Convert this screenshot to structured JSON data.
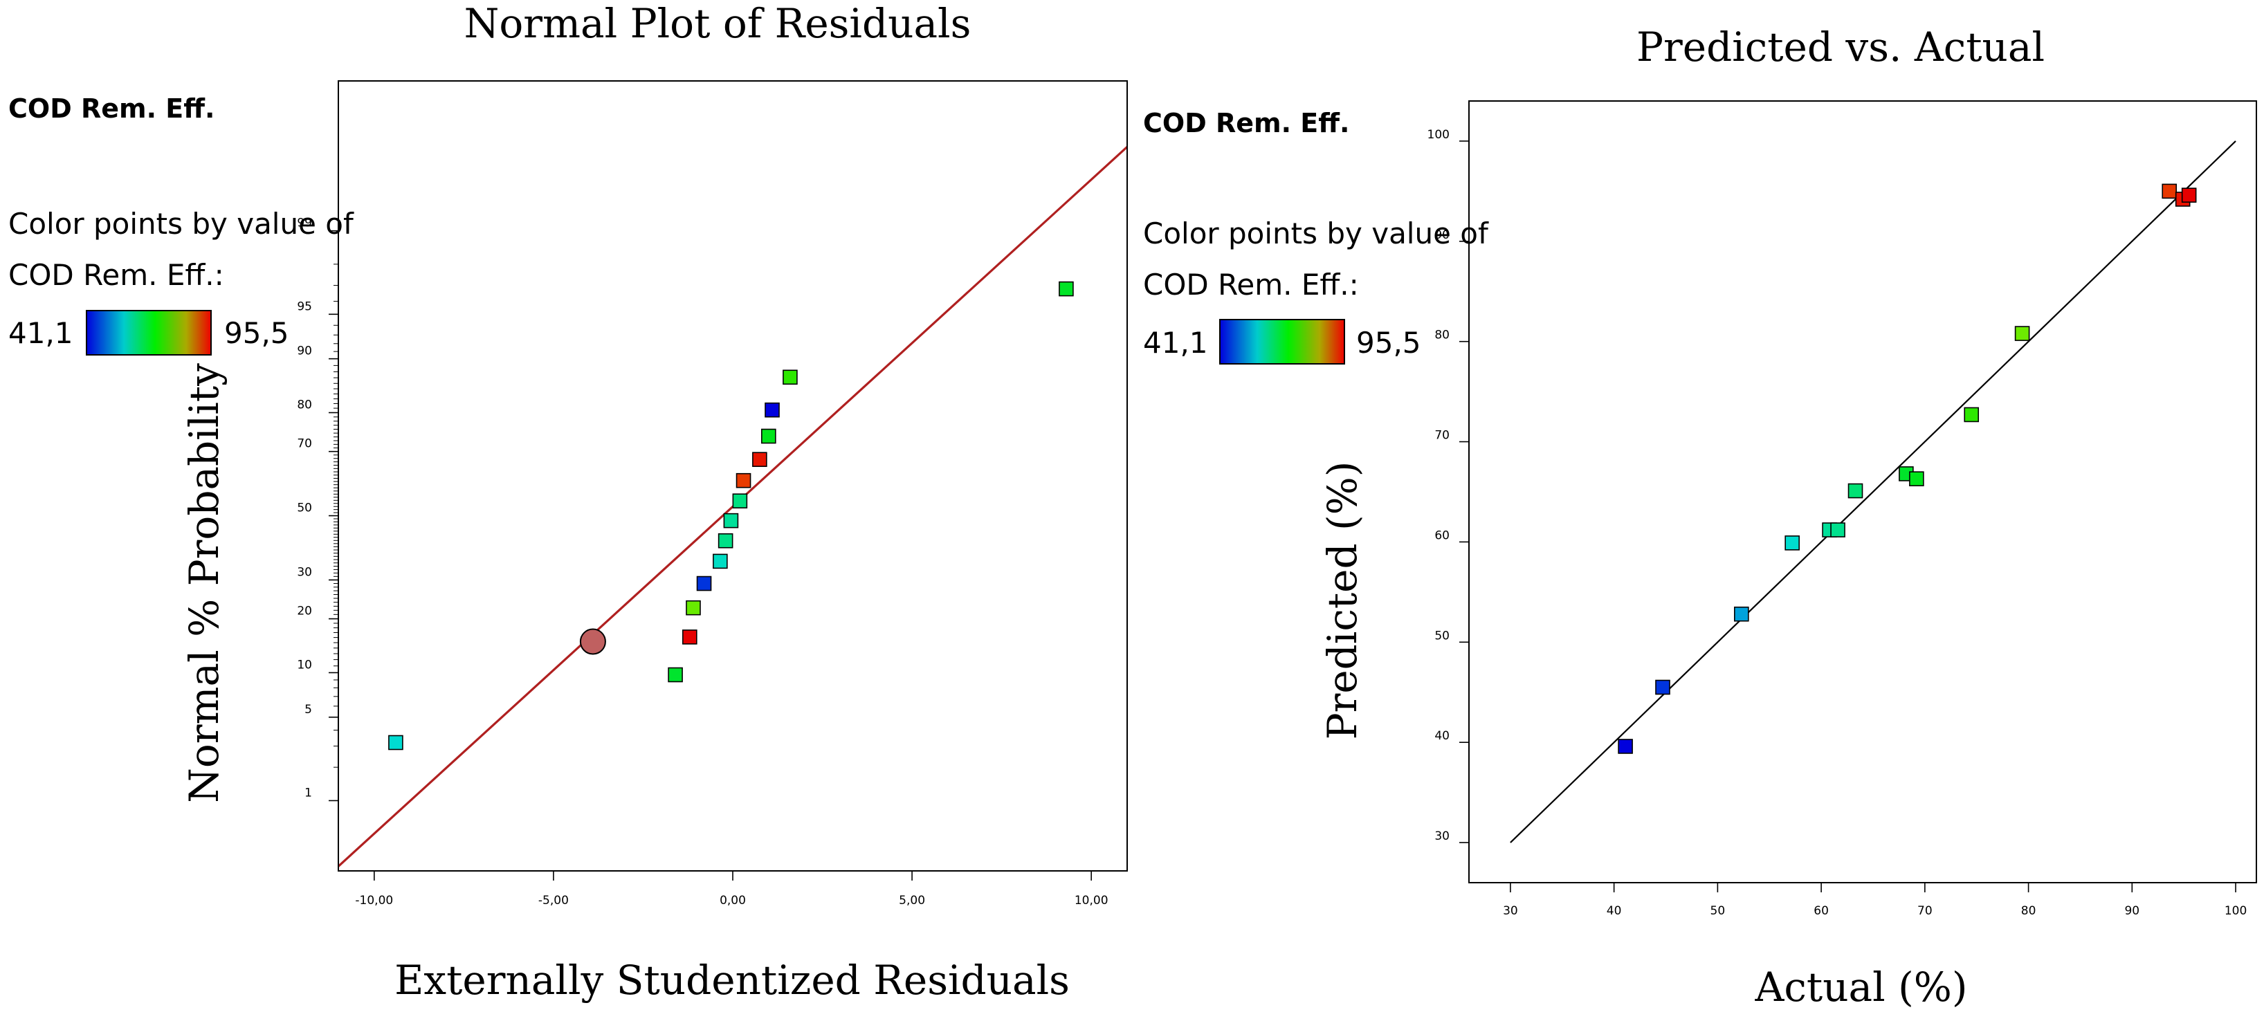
{
  "colors": {
    "red_line": "#b02020",
    "fit_line": "#000000",
    "median_marker": "#c06060",
    "gradient": [
      "#0000dd",
      "#00cccc",
      "#00ee00",
      "#eeee00",
      "#ee0000"
    ]
  },
  "chart_data": [
    {
      "type": "scatter",
      "title": "Normal Plot of Residuals",
      "xlabel": "Externally Studentized Residuals",
      "ylabel": "Normal % Probability",
      "response_label": "COD Rem. Eff.",
      "color_legend": {
        "line1": "Color points by value of",
        "line2": "COD Rem. Eff.:",
        "min_label": "41,1",
        "max_label": "95,5",
        "min": 41.1,
        "max": 95.5
      },
      "xlim": [
        -11.0,
        11.0
      ],
      "y_scale": "normal-probability",
      "x_ticks": [
        {
          "value": -10,
          "label": "-10,00"
        },
        {
          "value": -5,
          "label": "-5,00"
        },
        {
          "value": 0,
          "label": "0,00"
        },
        {
          "value": 5,
          "label": "5,00"
        },
        {
          "value": 10,
          "label": "10,00"
        }
      ],
      "y_ticks": [
        {
          "value": 1,
          "label": "1"
        },
        {
          "value": 5,
          "label": "5"
        },
        {
          "value": 10,
          "label": "10"
        },
        {
          "value": 20,
          "label": "20"
        },
        {
          "value": 30,
          "label": "30"
        },
        {
          "value": 50,
          "label": "50"
        },
        {
          "value": 70,
          "label": "70"
        },
        {
          "value": 80,
          "label": "80"
        },
        {
          "value": 90,
          "label": "90"
        },
        {
          "value": 95,
          "label": "95"
        },
        {
          "value": 99,
          "label": "99"
        }
      ],
      "reference_line": {
        "x1": -11.0,
        "y1": 0.21,
        "x2": 11.0,
        "y2": 99.87
      },
      "median_marker": {
        "x": -3.9,
        "y": 15.2
      },
      "points": [
        {
          "x": -9.4,
          "y": 3.2,
          "value": 57
        },
        {
          "x": -1.6,
          "y": 9.7,
          "value": 68
        },
        {
          "x": -1.2,
          "y": 16.1,
          "value": 95.5
        },
        {
          "x": -1.1,
          "y": 22.6,
          "value": 79
        },
        {
          "x": -0.8,
          "y": 29.0,
          "value": 44.7
        },
        {
          "x": -0.35,
          "y": 35.5,
          "value": 58
        },
        {
          "x": -0.2,
          "y": 41.9,
          "value": 62
        },
        {
          "x": -0.05,
          "y": 48.4,
          "value": 60.8
        },
        {
          "x": 0.2,
          "y": 54.8,
          "value": 62.5
        },
        {
          "x": 0.3,
          "y": 61.3,
          "value": 93.5
        },
        {
          "x": 0.75,
          "y": 67.7,
          "value": 94.8
        },
        {
          "x": 1.0,
          "y": 74.2,
          "value": 69.2
        },
        {
          "x": 1.1,
          "y": 80.6,
          "value": 41.1
        },
        {
          "x": 1.6,
          "y": 87.1,
          "value": 74.5
        },
        {
          "x": 9.3,
          "y": 96.8,
          "value": 68.5
        }
      ]
    },
    {
      "type": "scatter",
      "title": "Predicted vs. Actual",
      "xlabel": "Actual (%)",
      "ylabel": "Predicted (%)",
      "response_label": "COD Rem. Eff.",
      "color_legend": {
        "line1": "Color points by value of",
        "line2": "COD Rem. Eff.:",
        "min_label": "41,1",
        "max_label": "95,5",
        "min": 41.1,
        "max": 95.5
      },
      "xlim": [
        26.0,
        102.0
      ],
      "ylim": [
        26.0,
        104.0
      ],
      "x_ticks": [
        {
          "value": 30,
          "label": "30"
        },
        {
          "value": 40,
          "label": "40"
        },
        {
          "value": 50,
          "label": "50"
        },
        {
          "value": 60,
          "label": "60"
        },
        {
          "value": 70,
          "label": "70"
        },
        {
          "value": 80,
          "label": "80"
        },
        {
          "value": 90,
          "label": "90"
        },
        {
          "value": 100,
          "label": "100"
        }
      ],
      "y_ticks": [
        {
          "value": 30,
          "label": "30"
        },
        {
          "value": 40,
          "label": "40"
        },
        {
          "value": 50,
          "label": "50"
        },
        {
          "value": 60,
          "label": "60"
        },
        {
          "value": 70,
          "label": "70"
        },
        {
          "value": 80,
          "label": "80"
        },
        {
          "value": 90,
          "label": "90"
        },
        {
          "value": 100,
          "label": "100"
        }
      ],
      "reference_line": {
        "x1": 30,
        "y1": 30,
        "x2": 100,
        "y2": 100
      },
      "points": [
        {
          "x": 41.1,
          "y": 39.6,
          "value": 41.1
        },
        {
          "x": 44.7,
          "y": 45.5,
          "value": 44.7
        },
        {
          "x": 52.3,
          "y": 52.8,
          "value": 52.3
        },
        {
          "x": 57.2,
          "y": 59.9,
          "value": 57.2
        },
        {
          "x": 60.8,
          "y": 61.2,
          "value": 60.8
        },
        {
          "x": 61.6,
          "y": 61.2,
          "value": 61.6
        },
        {
          "x": 63.3,
          "y": 65.1,
          "value": 63.3
        },
        {
          "x": 68.2,
          "y": 66.8,
          "value": 68.2
        },
        {
          "x": 69.2,
          "y": 66.3,
          "value": 69.2
        },
        {
          "x": 74.5,
          "y": 72.7,
          "value": 74.5
        },
        {
          "x": 79.4,
          "y": 80.8,
          "value": 79.4
        },
        {
          "x": 93.6,
          "y": 95.0,
          "value": 93.6
        },
        {
          "x": 94.9,
          "y": 94.2,
          "value": 94.9
        },
        {
          "x": 95.5,
          "y": 94.6,
          "value": 95.5
        }
      ]
    }
  ]
}
